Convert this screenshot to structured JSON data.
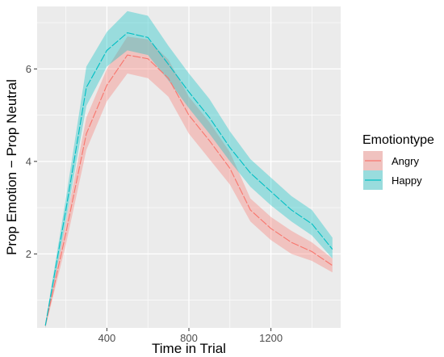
{
  "chart_data": {
    "type": "line",
    "xlabel": "Time in Trial",
    "ylabel": "Prop Emotion − Prop Neutral",
    "xlim": [
      60,
      1540
    ],
    "ylim": [
      0.4,
      7.35
    ],
    "x_ticks": [
      400,
      800,
      1200
    ],
    "x_tick_labels": [
      "400",
      "800",
      "1200"
    ],
    "y_ticks": [
      2,
      4,
      6
    ],
    "y_tick_labels": [
      "2",
      "4",
      "6"
    ],
    "grid": true,
    "legend": {
      "title": "Emotiontype",
      "position": "right"
    },
    "x": [
      100,
      200,
      300,
      400,
      500,
      600,
      700,
      800,
      900,
      1000,
      1100,
      1200,
      1300,
      1400,
      1500
    ],
    "series": [
      {
        "name": "Angry",
        "color": "#F8766D",
        "fill": "#F8766D",
        "values": [
          0.45,
          2.45,
          4.6,
          5.65,
          6.3,
          6.22,
          5.8,
          5.0,
          4.45,
          3.85,
          2.95,
          2.55,
          2.25,
          2.05,
          1.75
        ],
        "lower": [
          0.4,
          2.2,
          4.25,
          5.3,
          5.9,
          5.8,
          5.4,
          4.6,
          4.05,
          3.5,
          2.7,
          2.3,
          2.0,
          1.85,
          1.6
        ],
        "upper": [
          0.5,
          2.7,
          4.95,
          6.0,
          6.7,
          6.64,
          6.2,
          5.4,
          4.85,
          4.2,
          3.2,
          2.8,
          2.5,
          2.25,
          1.9
        ]
      },
      {
        "name": "Happy",
        "color": "#00BFC4",
        "fill": "#00BFC4",
        "values": [
          0.45,
          2.95,
          5.6,
          6.4,
          6.78,
          6.68,
          6.1,
          5.5,
          4.95,
          4.3,
          3.75,
          3.35,
          2.95,
          2.65,
          2.1
        ],
        "lower": [
          0.4,
          2.7,
          5.2,
          6.05,
          6.4,
          6.3,
          5.75,
          5.15,
          4.6,
          4.0,
          3.45,
          3.05,
          2.7,
          2.4,
          1.9
        ],
        "upper": [
          0.5,
          3.2,
          6.05,
          6.8,
          7.25,
          7.15,
          6.5,
          5.9,
          5.35,
          4.65,
          4.05,
          3.65,
          3.25,
          2.95,
          2.35
        ]
      }
    ]
  },
  "panel_color": "#EBEBEB",
  "grid_color": "#FFFFFF"
}
